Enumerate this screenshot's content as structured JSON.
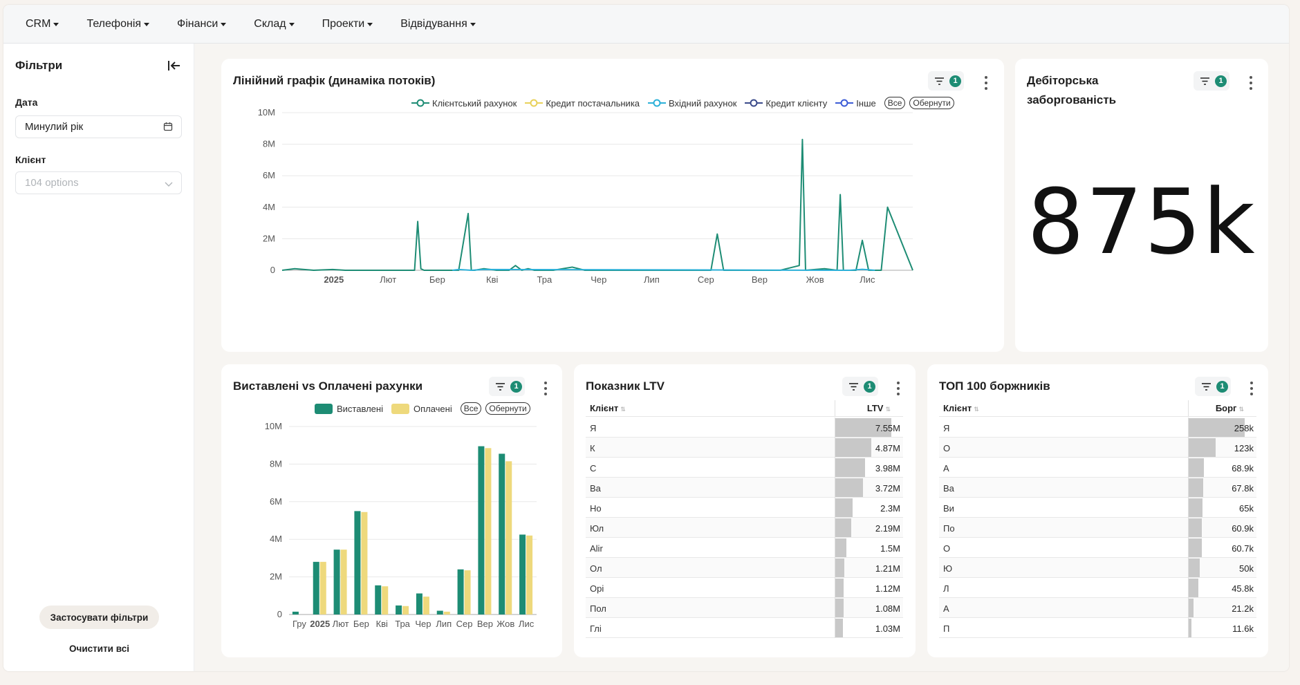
{
  "nav": {
    "items": [
      "CRM",
      "Телефонія",
      "Фінанси",
      "Склад",
      "Проекти",
      "Відвідування"
    ]
  },
  "sidebar": {
    "title": "Фільтри",
    "date_label": "Дата",
    "date_value": "Минулий рік",
    "client_label": "Клієнт",
    "client_placeholder": "104 options",
    "apply_label": "Застосувати фільтри",
    "clear_label": "Очистити всі"
  },
  "cards": {
    "line": {
      "title": "Лінійний графік (динаміка потоків)",
      "filter_count": "1",
      "legend": [
        "Клієнтський рахунок",
        "Кредит постачальника",
        "Вхідний рахунок",
        "Кредит клієнту",
        "Інше"
      ],
      "legend_colors": [
        "#1d8c74",
        "#e8d15a",
        "#2bb0d8",
        "#3a4a8a",
        "#3b5bd6"
      ],
      "btn_all": "Все",
      "btn_invert": "Обернути"
    },
    "debt": {
      "title_line1": "Дебіторська",
      "title_line2": "заборгованість",
      "filter_count": "1",
      "value": "875k"
    },
    "bars": {
      "title": "Виставлені vs Оплачені рахунки",
      "filter_count": "1",
      "legend": [
        "Виставлені",
        "Оплачені"
      ],
      "legend_colors": [
        "#1d8c74",
        "#eed97c"
      ],
      "btn_all": "Все",
      "btn_invert": "Обернути"
    },
    "ltv": {
      "title": "Показник LTV",
      "filter_count": "1",
      "col_client": "Клієнт",
      "col_value": "LTV",
      "rows": [
        {
          "name": "Я",
          "value": "7.55M",
          "num": 7.55
        },
        {
          "name": "К",
          "value": "4.87M",
          "num": 4.87
        },
        {
          "name": "С",
          "value": "3.98M",
          "num": 3.98
        },
        {
          "name": "Ва",
          "value": "3.72M",
          "num": 3.72
        },
        {
          "name": "Но",
          "value": "2.3M",
          "num": 2.3
        },
        {
          "name": "Юл",
          "value": "2.19M",
          "num": 2.19
        },
        {
          "name": "Alir",
          "value": "1.5M",
          "num": 1.5
        },
        {
          "name": "Ол",
          "value": "1.21M",
          "num": 1.21
        },
        {
          "name": "Орі",
          "value": "1.12M",
          "num": 1.12
        },
        {
          "name": "Пол",
          "value": "1.08M",
          "num": 1.08
        },
        {
          "name": "Глі",
          "value": "1.03M",
          "num": 1.03
        }
      ]
    },
    "top": {
      "title": "ТОП 100 боржників",
      "filter_count": "1",
      "col_client": "Клієнт",
      "col_value": "Борг",
      "rows": [
        {
          "name": "Я",
          "value": "258k",
          "num": 258
        },
        {
          "name": "О",
          "value": "123k",
          "num": 123
        },
        {
          "name": "А",
          "value": "68.9k",
          "num": 68.9
        },
        {
          "name": "Ва",
          "value": "67.8k",
          "num": 67.8
        },
        {
          "name": "Ви",
          "value": "65k",
          "num": 65
        },
        {
          "name": "По",
          "value": "60.9k",
          "num": 60.9
        },
        {
          "name": "О",
          "value": "60.7k",
          "num": 60.7
        },
        {
          "name": "Ю",
          "value": "50k",
          "num": 50
        },
        {
          "name": "Л",
          "value": "45.8k",
          "num": 45.8
        },
        {
          "name": "А",
          "value": "21.2k",
          "num": 21.2
        },
        {
          "name": "П",
          "value": "11.6k",
          "num": 11.6
        }
      ]
    }
  },
  "chart_data": [
    {
      "type": "line",
      "title": "Лінійний графік (динаміка потоків)",
      "y_ticks": [
        "0",
        "2M",
        "4M",
        "6M",
        "8M",
        "10M"
      ],
      "x_ticks": [
        "2025",
        "Лют",
        "Бер",
        "Кві",
        "Тра",
        "Чер",
        "Лип",
        "Сер",
        "Вер",
        "Жов",
        "Лис"
      ],
      "ylim": [
        0,
        10000000
      ],
      "series": [
        {
          "name": "Клієнтський рахунок",
          "x": [
            0.0,
            0.02,
            0.05,
            0.08,
            0.1,
            0.14,
            0.17,
            0.19,
            0.21,
            0.215,
            0.22,
            0.225,
            0.235,
            0.26,
            0.28,
            0.295,
            0.3,
            0.305,
            0.32,
            0.34,
            0.36,
            0.37,
            0.38,
            0.39,
            0.4,
            0.43,
            0.46,
            0.48,
            0.5,
            0.52,
            0.54,
            0.56,
            0.6,
            0.65,
            0.68,
            0.69,
            0.7,
            0.72,
            0.75,
            0.79,
            0.82,
            0.825,
            0.83,
            0.86,
            0.88,
            0.885,
            0.89,
            0.91,
            0.92,
            0.93,
            0.95,
            0.96,
            1.0
          ],
          "y": [
            0,
            100000,
            0,
            50000,
            0,
            0,
            0,
            0,
            0,
            3100000,
            100000,
            0,
            0,
            0,
            0,
            3600000,
            0,
            0,
            100000,
            0,
            0,
            300000,
            0,
            100000,
            0,
            0,
            200000,
            0,
            0,
            0,
            0,
            0,
            0,
            0,
            0,
            2300000,
            0,
            0,
            0,
            0,
            300000,
            8300000,
            0,
            100000,
            0,
            4800000,
            0,
            0,
            1900000,
            0,
            0,
            4000000,
            0
          ]
        },
        {
          "name": "Вхідний рахунок",
          "x": [
            0.27,
            0.28,
            0.3,
            0.32,
            0.9,
            0.92,
            0.94
          ],
          "y": [
            0,
            50000,
            0,
            50000,
            0,
            60000,
            0
          ]
        }
      ]
    },
    {
      "type": "bar",
      "title": "Виставлені vs Оплачені рахунки",
      "categories": [
        "Гру",
        "2025",
        "Лют",
        "Бер",
        "Кві",
        "Тра",
        "Чер",
        "Лип",
        "Сер",
        "Вер",
        "Жов",
        "Лис"
      ],
      "y_ticks": [
        "0",
        "2M",
        "4M",
        "6M",
        "8M",
        "10M"
      ],
      "ylim": [
        0,
        10000000
      ],
      "series": [
        {
          "name": "Виставлені",
          "values": [
            150000,
            2800000,
            3450000,
            5500000,
            1550000,
            480000,
            1120000,
            200000,
            2400000,
            8950000,
            8550000,
            4250000
          ]
        },
        {
          "name": "Оплачені",
          "values": [
            0,
            2800000,
            3450000,
            5450000,
            1500000,
            450000,
            950000,
            150000,
            2350000,
            8850000,
            8150000,
            4200000
          ]
        }
      ]
    }
  ]
}
